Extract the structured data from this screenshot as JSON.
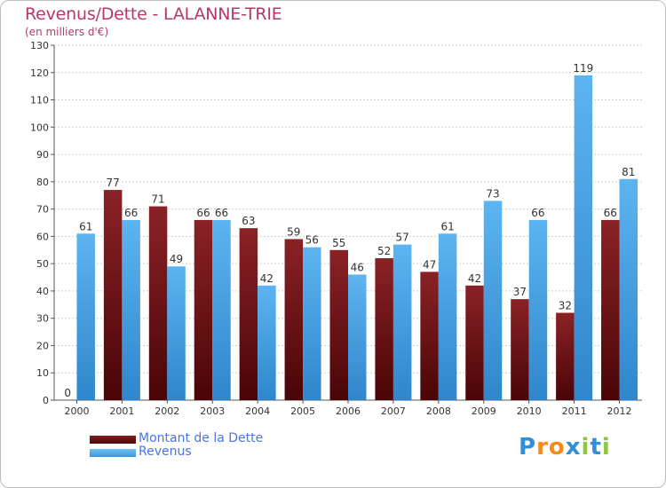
{
  "header": {
    "title": "Revenus/Dette - LALANNE-TRIE",
    "subtitle": "(en milliers d'€)"
  },
  "logo": {
    "letters": [
      "P",
      "r",
      "o",
      "x",
      "i",
      "t",
      "i"
    ],
    "colors": [
      "#2f8fd8",
      "#f28a1c",
      "#f28a1c",
      "#2f8fd8",
      "#8dc63f",
      "#2f8fd8",
      "#8dc63f"
    ]
  },
  "chart_data": {
    "type": "bar",
    "title": "Revenus/Dette - LALANNE-TRIE",
    "ylabel": "(en milliers d'€)",
    "xlabel": "",
    "categories": [
      "2000",
      "2001",
      "2002",
      "2003",
      "2004",
      "2005",
      "2006",
      "2007",
      "2008",
      "2009",
      "2010",
      "2011",
      "2012"
    ],
    "series": [
      {
        "name": "Montant de la Dette",
        "color": "#7a1518",
        "values": [
          0,
          77,
          71,
          66,
          63,
          59,
          55,
          52,
          47,
          42,
          37,
          32,
          66
        ]
      },
      {
        "name": "Revenus",
        "color": "#4ba8ea",
        "values": [
          61,
          66,
          49,
          66,
          42,
          56,
          46,
          57,
          61,
          73,
          66,
          119,
          81
        ]
      }
    ],
    "ylim": [
      0,
      130
    ],
    "yticks": [
      0,
      10,
      20,
      30,
      40,
      50,
      60,
      70,
      80,
      90,
      100,
      110,
      120,
      130
    ],
    "grid": true,
    "legend": "bottom-left"
  }
}
